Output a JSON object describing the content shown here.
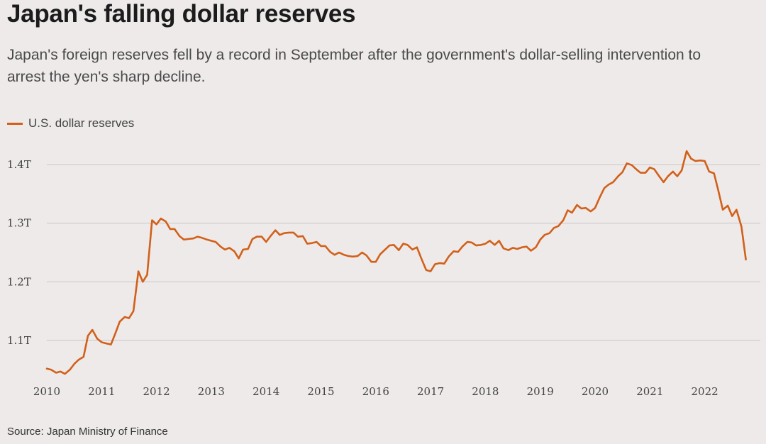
{
  "title": "Japan's falling dollar reserves",
  "subtitle": "Japan's foreign reserves fell by a record in September after the government's dollar-selling intervention to arrest the yen's sharp decline.",
  "source": "Source: Japan Ministry of Finance",
  "colors": {
    "line": "#d2601a",
    "grid": "#c9c5c4",
    "background": "#edeae9"
  },
  "chart_data": {
    "type": "line",
    "title": "Japan's falling dollar reserves",
    "xlabel": "",
    "ylabel": "",
    "xlim": [
      2010,
      2022.9
    ],
    "ylim": [
      1.03,
      1.45
    ],
    "grid": true,
    "legend_position": "top-left",
    "y_ticks": [
      {
        "value": 1.1,
        "label": "1.1T"
      },
      {
        "value": 1.2,
        "label": "1.2T"
      },
      {
        "value": 1.3,
        "label": "1.3T"
      },
      {
        "value": 1.4,
        "label": "1.4T"
      }
    ],
    "x_ticks": [
      {
        "value": 2010,
        "label": "2010"
      },
      {
        "value": 2011,
        "label": "2011"
      },
      {
        "value": 2012,
        "label": "2012"
      },
      {
        "value": 2013,
        "label": "2013"
      },
      {
        "value": 2014,
        "label": "2014"
      },
      {
        "value": 2015,
        "label": "2015"
      },
      {
        "value": 2016,
        "label": "2016"
      },
      {
        "value": 2017,
        "label": "2017"
      },
      {
        "value": 2018,
        "label": "2018"
      },
      {
        "value": 2019,
        "label": "2019"
      },
      {
        "value": 2020,
        "label": "2020"
      },
      {
        "value": 2021,
        "label": "2021"
      },
      {
        "value": 2022,
        "label": "2022"
      }
    ],
    "series": [
      {
        "name": "U.S. dollar reserves",
        "points": [
          [
            2010.0,
            1.052
          ],
          [
            2010.08,
            1.05
          ],
          [
            2010.17,
            1.045
          ],
          [
            2010.25,
            1.047
          ],
          [
            2010.33,
            1.043
          ],
          [
            2010.42,
            1.05
          ],
          [
            2010.5,
            1.06
          ],
          [
            2010.58,
            1.067
          ],
          [
            2010.67,
            1.072
          ],
          [
            2010.75,
            1.108
          ],
          [
            2010.83,
            1.118
          ],
          [
            2010.92,
            1.103
          ],
          [
            2011.0,
            1.097
          ],
          [
            2011.08,
            1.095
          ],
          [
            2011.17,
            1.093
          ],
          [
            2011.25,
            1.112
          ],
          [
            2011.33,
            1.132
          ],
          [
            2011.42,
            1.14
          ],
          [
            2011.5,
            1.138
          ],
          [
            2011.58,
            1.15
          ],
          [
            2011.67,
            1.218
          ],
          [
            2011.75,
            1.2
          ],
          [
            2011.83,
            1.212
          ],
          [
            2011.92,
            1.305
          ],
          [
            2012.0,
            1.298
          ],
          [
            2012.08,
            1.308
          ],
          [
            2012.17,
            1.303
          ],
          [
            2012.25,
            1.29
          ],
          [
            2012.33,
            1.29
          ],
          [
            2012.42,
            1.278
          ],
          [
            2012.5,
            1.272
          ],
          [
            2012.58,
            1.273
          ],
          [
            2012.67,
            1.274
          ],
          [
            2012.75,
            1.277
          ],
          [
            2012.83,
            1.275
          ],
          [
            2012.92,
            1.272
          ],
          [
            2013.0,
            1.27
          ],
          [
            2013.08,
            1.268
          ],
          [
            2013.17,
            1.26
          ],
          [
            2013.25,
            1.255
          ],
          [
            2013.33,
            1.258
          ],
          [
            2013.42,
            1.252
          ],
          [
            2013.5,
            1.24
          ],
          [
            2013.58,
            1.255
          ],
          [
            2013.67,
            1.256
          ],
          [
            2013.75,
            1.273
          ],
          [
            2013.83,
            1.277
          ],
          [
            2013.92,
            1.277
          ],
          [
            2014.0,
            1.268
          ],
          [
            2014.08,
            1.278
          ],
          [
            2014.17,
            1.288
          ],
          [
            2014.25,
            1.28
          ],
          [
            2014.33,
            1.283
          ],
          [
            2014.42,
            1.284
          ],
          [
            2014.5,
            1.284
          ],
          [
            2014.58,
            1.277
          ],
          [
            2014.67,
            1.278
          ],
          [
            2014.75,
            1.265
          ],
          [
            2014.83,
            1.266
          ],
          [
            2014.92,
            1.268
          ],
          [
            2015.0,
            1.261
          ],
          [
            2015.08,
            1.261
          ],
          [
            2015.17,
            1.251
          ],
          [
            2015.25,
            1.246
          ],
          [
            2015.33,
            1.25
          ],
          [
            2015.42,
            1.246
          ],
          [
            2015.5,
            1.244
          ],
          [
            2015.58,
            1.243
          ],
          [
            2015.67,
            1.244
          ],
          [
            2015.75,
            1.25
          ],
          [
            2015.83,
            1.245
          ],
          [
            2015.92,
            1.234
          ],
          [
            2016.0,
            1.234
          ],
          [
            2016.08,
            1.247
          ],
          [
            2016.17,
            1.255
          ],
          [
            2016.25,
            1.262
          ],
          [
            2016.33,
            1.263
          ],
          [
            2016.42,
            1.254
          ],
          [
            2016.5,
            1.265
          ],
          [
            2016.58,
            1.263
          ],
          [
            2016.67,
            1.255
          ],
          [
            2016.75,
            1.259
          ],
          [
            2016.83,
            1.24
          ],
          [
            2016.92,
            1.22
          ],
          [
            2017.0,
            1.218
          ],
          [
            2017.08,
            1.23
          ],
          [
            2017.17,
            1.232
          ],
          [
            2017.25,
            1.231
          ],
          [
            2017.33,
            1.243
          ],
          [
            2017.42,
            1.252
          ],
          [
            2017.5,
            1.251
          ],
          [
            2017.58,
            1.26
          ],
          [
            2017.67,
            1.268
          ],
          [
            2017.75,
            1.267
          ],
          [
            2017.83,
            1.262
          ],
          [
            2017.92,
            1.263
          ],
          [
            2018.0,
            1.265
          ],
          [
            2018.08,
            1.27
          ],
          [
            2018.17,
            1.263
          ],
          [
            2018.25,
            1.27
          ],
          [
            2018.33,
            1.257
          ],
          [
            2018.42,
            1.254
          ],
          [
            2018.5,
            1.258
          ],
          [
            2018.58,
            1.256
          ],
          [
            2018.67,
            1.259
          ],
          [
            2018.75,
            1.26
          ],
          [
            2018.83,
            1.253
          ],
          [
            2018.92,
            1.259
          ],
          [
            2019.0,
            1.272
          ],
          [
            2019.08,
            1.28
          ],
          [
            2019.17,
            1.283
          ],
          [
            2019.25,
            1.292
          ],
          [
            2019.33,
            1.295
          ],
          [
            2019.42,
            1.305
          ],
          [
            2019.5,
            1.322
          ],
          [
            2019.58,
            1.318
          ],
          [
            2019.67,
            1.331
          ],
          [
            2019.75,
            1.325
          ],
          [
            2019.83,
            1.326
          ],
          [
            2019.92,
            1.32
          ],
          [
            2020.0,
            1.326
          ],
          [
            2020.08,
            1.343
          ],
          [
            2020.17,
            1.36
          ],
          [
            2020.25,
            1.366
          ],
          [
            2020.33,
            1.37
          ],
          [
            2020.42,
            1.38
          ],
          [
            2020.5,
            1.387
          ],
          [
            2020.58,
            1.402
          ],
          [
            2020.67,
            1.399
          ],
          [
            2020.75,
            1.392
          ],
          [
            2020.83,
            1.386
          ],
          [
            2020.92,
            1.386
          ],
          [
            2021.0,
            1.395
          ],
          [
            2021.08,
            1.392
          ],
          [
            2021.17,
            1.38
          ],
          [
            2021.25,
            1.37
          ],
          [
            2021.33,
            1.38
          ],
          [
            2021.42,
            1.388
          ],
          [
            2021.5,
            1.38
          ],
          [
            2021.58,
            1.39
          ],
          [
            2021.67,
            1.423
          ],
          [
            2021.75,
            1.41
          ],
          [
            2021.83,
            1.406
          ],
          [
            2021.92,
            1.407
          ],
          [
            2022.0,
            1.406
          ],
          [
            2022.08,
            1.388
          ],
          [
            2022.17,
            1.385
          ],
          [
            2022.25,
            1.355
          ],
          [
            2022.33,
            1.323
          ],
          [
            2022.42,
            1.33
          ],
          [
            2022.5,
            1.312
          ],
          [
            2022.58,
            1.323
          ],
          [
            2022.67,
            1.294
          ],
          [
            2022.75,
            1.238
          ]
        ]
      }
    ]
  }
}
